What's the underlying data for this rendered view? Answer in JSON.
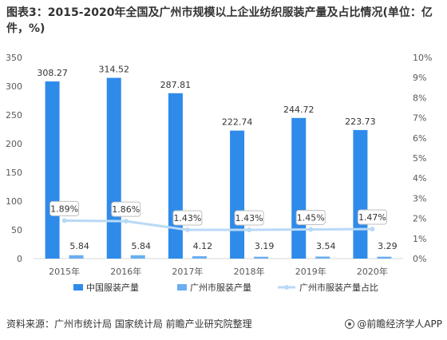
{
  "title": "图表3：2015-2020年全国及广州市规模以上企业纺织服装产量及占比情况(单位：亿件，%)",
  "source": "资料来源：广州市统计局 国家统计局 前瞻产业研究院整理",
  "brand": "@前瞻经济学人APP",
  "colors": {
    "national": "#2f8bea",
    "guangzhou": "#6aaef0",
    "share": "#b9d9f7"
  },
  "chart_data": {
    "type": "bar",
    "categories": [
      "2015年",
      "2016年",
      "2017年",
      "2018年",
      "2019年",
      "2020年"
    ],
    "series": [
      {
        "name": "中国服装产量",
        "type": "bar",
        "axis": "left",
        "values": [
          308.27,
          314.52,
          287.81,
          222.74,
          244.72,
          223.73
        ],
        "labels": [
          "308.27",
          "314.52",
          "287.81",
          "222.74",
          "244.72",
          "223.73"
        ]
      },
      {
        "name": "广州市服装产量",
        "type": "bar",
        "axis": "left",
        "values": [
          5.84,
          5.84,
          4.12,
          3.19,
          3.54,
          3.29
        ],
        "labels": [
          "5.84",
          "5.84",
          "4.12",
          "3.19",
          "3.54",
          "3.29"
        ]
      },
      {
        "name": "广州市服装产量占比",
        "type": "line",
        "axis": "right",
        "values": [
          1.89,
          1.86,
          1.43,
          1.43,
          1.45,
          1.47
        ],
        "labels": [
          "1.89%",
          "1.86%",
          "1.43%",
          "1.43%",
          "1.45%",
          "1.47%"
        ]
      }
    ],
    "left_axis": {
      "min": 0,
      "max": 350,
      "ticks": [
        "0",
        "50",
        "100",
        "150",
        "200",
        "250",
        "300",
        "350"
      ]
    },
    "right_axis": {
      "min": 0,
      "max": 10,
      "ticks": [
        "0%",
        "1%",
        "2%",
        "3%",
        "4%",
        "5%",
        "6%",
        "7%",
        "8%",
        "9%",
        "10%"
      ]
    },
    "legend_position": "bottom",
    "grid": false
  }
}
